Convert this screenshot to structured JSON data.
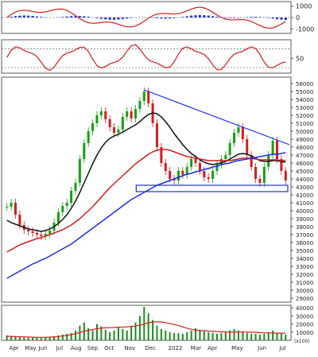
{
  "chart_data": {
    "type": "line",
    "title": "",
    "colors": {
      "frame": "#5a5a5a",
      "macd_line": "#d41c1c",
      "macd_hist": "#1f2fd6",
      "rsi": "#d41c1c",
      "ref_line": "#444444",
      "ma_short": "#111111",
      "ma_long": "#1a2fe0",
      "ma_mid": "#d41c1c",
      "trendline": "#1a2fe0",
      "support_box": "#1a2fe0",
      "candle_up": "#14a014",
      "candle_down": "#d41c1c",
      "volume_bar": "#1f8a1f",
      "volume_ma": "#d41c1c"
    },
    "panels": {
      "macd": {
        "ylim": [
          -1400,
          1400
        ],
        "ticks": [
          "1000",
          "0",
          "-1000"
        ],
        "tick_values": [
          1000,
          0,
          -1000
        ]
      },
      "rsi": {
        "ylim": [
          18,
          90
        ],
        "ticks": [
          "50"
        ],
        "tick_values": [
          50
        ],
        "ref_lines": [
          70,
          30
        ]
      },
      "price": {
        "ylim": [
          28500,
          56800
        ],
        "ticks": [
          "56000",
          "55000",
          "54000",
          "53000",
          "52000",
          "51000",
          "50000",
          "49000",
          "48000",
          "47000",
          "46000",
          "45000",
          "44000",
          "43000",
          "42000",
          "41000",
          "40000",
          "39000",
          "38000",
          "37000",
          "36000",
          "35000",
          "34000",
          "33000",
          "32000",
          "31000",
          "30000",
          "29000"
        ],
        "tick_values": [
          56000,
          55000,
          54000,
          53000,
          52000,
          51000,
          50000,
          49000,
          48000,
          47000,
          46000,
          45000,
          44000,
          43000,
          42000,
          41000,
          40000,
          39000,
          38000,
          37000,
          36000,
          35000,
          34000,
          33000,
          32000,
          31000,
          30000,
          29000
        ],
        "trendline": {
          "from": [
            "Nov-10",
            55200
          ],
          "to": [
            "Jun-30",
            48300
          ]
        },
        "support_zone": [
          42400,
          43200
        ],
        "series": [
          {
            "name": "",
            "role": "close",
            "values": [
              40500,
              41000,
              39500,
              38200,
              37600,
              37400,
              37200,
              37000,
              36800,
              37100,
              37500,
              38500,
              39800,
              40600,
              41000,
              42500,
              43500,
              46500,
              48500,
              50000,
              51000,
              52000,
              52500,
              51500,
              50500,
              49800,
              50200,
              51800,
              52500,
              51600,
              52800,
              53800,
              55000,
              53500,
              51000,
              48000,
              46000,
              45000,
              44000,
              43800,
              45000,
              44500,
              45500,
              46500,
              46000,
              45000,
              44200,
              44000,
              45000,
              45800,
              46500,
              47000,
              48500,
              49800,
              50500,
              49000,
              47000,
              45500,
              44000,
              43500,
              45500,
              47000,
              48800,
              46500,
              45000,
              43800
            ]
          },
          {
            "name": "",
            "role": "ma_short",
            "values": [
              38800,
              38500,
              38300,
              38100,
              37900,
              37700,
              37600,
              37500,
              37400,
              37500,
              37700,
              38000,
              38400,
              38900,
              39500,
              40300,
              41200,
              42300,
              43500,
              44700,
              45900,
              47000,
              47900,
              48600,
              49100,
              49400,
              49600,
              49900,
              50200,
              50500,
              50800,
              51200,
              51700,
              52100,
              52300,
              52200,
              51800,
              51200,
              50500,
              49700,
              49000,
              48300,
              47700,
              47200,
              46800,
              46400,
              46100,
              45900,
              45800,
              45900,
              46000,
              46200,
              46500,
              46800,
              47100,
              47200,
              47100,
              46900,
              46600,
              46300,
              46200,
              46200,
              46300,
              46300,
              46200,
              46100
            ]
          },
          {
            "name": "",
            "role": "ma_mid",
            "values": [
              34800,
              35100,
              35400,
              35700,
              35900,
              36100,
              36300,
              36500,
              36600,
              36800,
              37000,
              37200,
              37400,
              37600,
              37900,
              38200,
              38600,
              39000,
              39500,
              40000,
              40500,
              41100,
              41700,
              42300,
              42900,
              43400,
              43900,
              44400,
              44900,
              45400,
              45900,
              46300,
              46700,
              47100,
              47400,
              47600,
              47700,
              47700,
              47600,
              47400,
              47200,
              47000,
              46800,
              46700,
              46600,
              46500,
              46400,
              46300,
              46300,
              46300,
              46300,
              46300,
              46300,
              46400,
              46500,
              46600,
              46600,
              46600,
              46500,
              46400,
              46400,
              46400,
              46400,
              46400,
              46300,
              46300
            ]
          },
          {
            "name": "",
            "role": "ma_long",
            "values": [
              31500,
              31800,
              32100,
              32400,
              32700,
              33000,
              33300,
              33500,
              33800,
              34000,
              34300,
              34600,
              34900,
              35200,
              35500,
              35800,
              36200,
              36600,
              37000,
              37400,
              37800,
              38200,
              38600,
              39000,
              39400,
              39800,
              40200,
              40600,
              41000,
              41400,
              41700,
              42000,
              42300,
              42600,
              42900,
              43200,
              43400,
              43600,
              43800,
              44000,
              44200,
              44400,
              44600,
              44700,
              44900,
              45000,
              45200,
              45300,
              45500,
              45600,
              45800,
              45900,
              46000,
              46200,
              46300,
              46400,
              46500,
              46600,
              46700,
              46800,
              46900,
              47000,
              47100,
              47100,
              47200,
              47300
            ]
          }
        ]
      },
      "volume": {
        "ylim": [
          0,
          43000
        ],
        "ticks": [
          "40000",
          "30000",
          "20000",
          "10000"
        ],
        "tick_values": [
          40000,
          30000,
          20000,
          10000
        ],
        "unit_label": "(x100)",
        "values": [
          6000,
          5000,
          4500,
          4000,
          3500,
          3000,
          3200,
          3000,
          2800,
          3500,
          4000,
          5000,
          6000,
          7000,
          8000,
          9000,
          12000,
          18000,
          22000,
          15000,
          12000,
          20000,
          17000,
          13000,
          10000,
          12000,
          16000,
          14000,
          12000,
          18000,
          22000,
          30000,
          41000,
          33000,
          25000,
          18000,
          14000,
          12000,
          10000,
          9000,
          9000,
          8000,
          10000,
          12000,
          15000,
          13000,
          11000,
          10000,
          9000,
          8000,
          9000,
          10000,
          12000,
          14000,
          12000,
          10000,
          9000,
          8000,
          8000,
          7000,
          8000,
          10000,
          12000,
          9000,
          8000,
          7000
        ],
        "ma": [
          5000,
          4800,
          4600,
          4400,
          4200,
          4000,
          3800,
          3700,
          3600,
          3700,
          3900,
          4200,
          4700,
          5300,
          6000,
          7000,
          8200,
          9500,
          11000,
          12200,
          13200,
          14200,
          15000,
          15400,
          15600,
          15800,
          16100,
          16300,
          16500,
          16900,
          17500,
          18500,
          20000,
          21500,
          22500,
          22800,
          22500,
          21700,
          20600,
          19400,
          18000,
          16400,
          14800,
          13500,
          12500,
          12000,
          11700,
          11400,
          11100,
          10800,
          10500,
          10300,
          10200,
          10200,
          10300,
          10300,
          10200,
          10000,
          9800,
          9500,
          9200,
          9000,
          8900,
          8800,
          8700,
          8600
        ]
      }
    },
    "x_labels": [
      "Apr",
      "May",
      "Jun",
      "Jul",
      "Aug",
      "Sep",
      "Oct",
      "Nov",
      "Dec",
      "2022",
      "Mar",
      "Apr",
      "May",
      "Jun",
      "Jul"
    ],
    "x_label_positions": [
      0.03,
      0.07,
      0.1,
      0.14,
      0.18,
      0.22,
      0.26,
      0.31,
      0.36,
      0.42,
      0.47,
      0.51,
      0.57,
      0.63,
      0.68
    ]
  }
}
